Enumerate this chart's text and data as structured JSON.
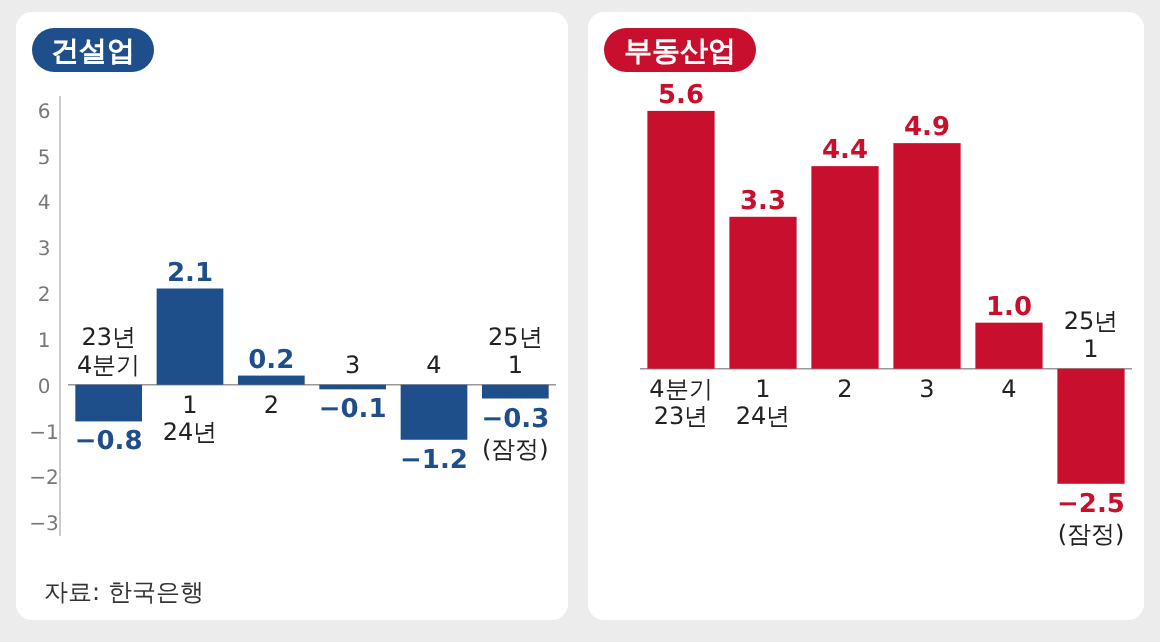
{
  "chart_data": [
    {
      "type": "bar",
      "title": "건설업",
      "categories": [
        "23년\n4분기",
        "1\n24년",
        "2",
        "3",
        "4",
        "25년\n1"
      ],
      "values": [
        -0.8,
        2.1,
        0.2,
        -0.1,
        -1.2,
        -0.3
      ],
      "value_labels": [
        "−0.8",
        "2.1",
        "0.2",
        "−0.1",
        "−1.2",
        "−0.3"
      ],
      "color": "#1f4f8a",
      "ylim": [
        -3.3,
        6.3
      ],
      "yticks": [
        -3,
        -2,
        -1,
        0,
        1,
        2,
        3,
        4,
        5,
        6
      ],
      "grid": false,
      "annotations": [
        {
          "text": "(잠정)",
          "x": "25년\n1",
          "y": -0.3
        },
        "자료: 한국은행"
      ]
    },
    {
      "type": "bar",
      "title": "부동산업",
      "categories": [
        "4분기\n23년",
        "1\n24년",
        "2",
        "3",
        "4",
        "25년\n1"
      ],
      "values": [
        5.6,
        3.3,
        4.4,
        4.9,
        1.0,
        -2.5
      ],
      "value_labels": [
        "5.6",
        "3.3",
        "4.4",
        "4.9",
        "1.0",
        "−2.5"
      ],
      "color": "#c8102e",
      "grid": false,
      "annotations": [
        {
          "text": "(잠정)",
          "x": "25년\n1",
          "y": -2.5
        }
      ]
    }
  ]
}
